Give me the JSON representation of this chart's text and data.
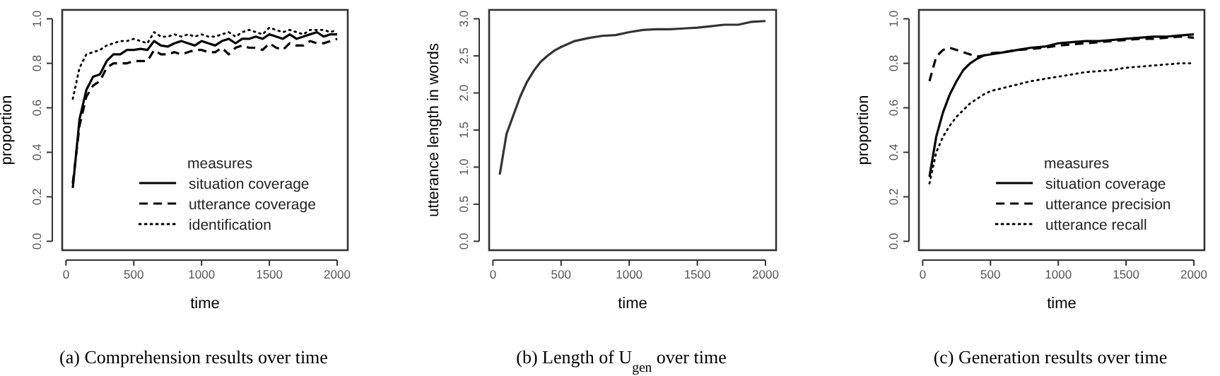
{
  "chart_data": [
    {
      "type": "line",
      "title": "(a) Comprehension results over time",
      "xlabel": "time",
      "ylabel": "proportion",
      "legend_title": "measures",
      "legend": "bottom right",
      "xlim": [
        -28,
        2078
      ],
      "ylim": [
        -0.04,
        1.04
      ],
      "xticks": [
        0,
        500,
        1000,
        1500,
        2000
      ],
      "yticks": [
        {
          "value": 0,
          "label": "0.0"
        },
        {
          "value": 0.2,
          "label": "0.2"
        },
        {
          "value": 0.4,
          "label": "0.4"
        },
        {
          "value": 0.6,
          "label": "0.6"
        },
        {
          "value": 0.8,
          "label": "0.8"
        },
        {
          "value": 1,
          "label": "1.0"
        }
      ],
      "x": [
        50,
        100,
        150,
        200,
        250,
        300,
        350,
        400,
        450,
        500,
        550,
        600,
        650,
        700,
        750,
        800,
        850,
        900,
        950,
        1000,
        1050,
        1100,
        1150,
        1200,
        1250,
        1300,
        1350,
        1400,
        1450,
        1500,
        1550,
        1600,
        1650,
        1700,
        1750,
        1800,
        1850,
        1900,
        1950,
        2000
      ],
      "series": [
        {
          "name": "situation coverage",
          "color": "#000000",
          "line_style": "solid",
          "values": [
            0.24,
            0.55,
            0.68,
            0.74,
            0.75,
            0.81,
            0.84,
            0.84,
            0.86,
            0.86,
            0.865,
            0.86,
            0.9,
            0.88,
            0.875,
            0.89,
            0.9,
            0.89,
            0.88,
            0.9,
            0.89,
            0.88,
            0.9,
            0.91,
            0.89,
            0.91,
            0.91,
            0.92,
            0.91,
            0.93,
            0.92,
            0.91,
            0.93,
            0.91,
            0.92,
            0.93,
            0.94,
            0.92,
            0.93,
            0.93
          ]
        },
        {
          "name": "utterance coverage",
          "color": "#000000",
          "line_style": "dashed",
          "values": [
            0.26,
            0.52,
            0.65,
            0.7,
            0.72,
            0.78,
            0.8,
            0.8,
            0.8,
            0.81,
            0.81,
            0.81,
            0.86,
            0.84,
            0.84,
            0.85,
            0.84,
            0.85,
            0.86,
            0.86,
            0.85,
            0.85,
            0.87,
            0.84,
            0.87,
            0.88,
            0.87,
            0.87,
            0.86,
            0.89,
            0.87,
            0.86,
            0.89,
            0.88,
            0.88,
            0.9,
            0.89,
            0.89,
            0.9,
            0.91
          ]
        },
        {
          "name": "identification",
          "color": "#000000",
          "line_style": "dotted",
          "values": [
            0.64,
            0.78,
            0.84,
            0.85,
            0.86,
            0.88,
            0.89,
            0.9,
            0.9,
            0.91,
            0.9,
            0.89,
            0.94,
            0.92,
            0.92,
            0.93,
            0.92,
            0.93,
            0.92,
            0.93,
            0.92,
            0.92,
            0.93,
            0.94,
            0.92,
            0.94,
            0.95,
            0.94,
            0.93,
            0.96,
            0.95,
            0.94,
            0.95,
            0.94,
            0.93,
            0.95,
            0.95,
            0.95,
            0.94,
            0.95
          ]
        }
      ]
    },
    {
      "type": "line",
      "title": "(b) Length of U$_{gen}$ over time",
      "xlabel": "time",
      "ylabel": "utterance length in words",
      "xlim": [
        -28,
        2078
      ],
      "ylim": [
        -0.12,
        3.12
      ],
      "xticks": [
        0,
        500,
        1000,
        1500,
        2000
      ],
      "yticks": [
        {
          "value": 0,
          "label": "0.0"
        },
        {
          "value": 0.5,
          "label": "0.5"
        },
        {
          "value": 1,
          "label": "1.0"
        },
        {
          "value": 1.5,
          "label": "1.5"
        },
        {
          "value": 2,
          "label": "2.0"
        },
        {
          "value": 2.5,
          "label": "2.5"
        },
        {
          "value": 3,
          "label": "3.0"
        }
      ],
      "x": [
        50,
        100,
        150,
        200,
        250,
        300,
        350,
        400,
        450,
        500,
        600,
        700,
        800,
        900,
        1000,
        1100,
        1200,
        1300,
        1400,
        1500,
        1600,
        1700,
        1800,
        1900,
        2000
      ],
      "series": [
        {
          "color": "#333333",
          "line_style": "solid",
          "values": [
            0.9,
            1.45,
            1.7,
            1.95,
            2.15,
            2.3,
            2.42,
            2.5,
            2.57,
            2.62,
            2.7,
            2.74,
            2.77,
            2.78,
            2.82,
            2.85,
            2.86,
            2.86,
            2.87,
            2.88,
            2.9,
            2.92,
            2.92,
            2.96,
            2.97
          ]
        }
      ]
    },
    {
      "type": "line",
      "title": "(c) Generation results over time",
      "xlabel": "time",
      "ylabel": "proportion",
      "legend_title": "measures",
      "legend": "bottom right",
      "xlim": [
        -28,
        2078
      ],
      "ylim": [
        -0.04,
        1.04
      ],
      "xticks": [
        0,
        500,
        1000,
        1500,
        2000
      ],
      "yticks": [
        {
          "value": 0,
          "label": "0.0"
        },
        {
          "value": 0.2,
          "label": "0.2"
        },
        {
          "value": 0.4,
          "label": "0.4"
        },
        {
          "value": 0.6,
          "label": "0.6"
        },
        {
          "value": 0.8,
          "label": "0.8"
        },
        {
          "value": 1,
          "label": "1.0"
        }
      ],
      "x": [
        50,
        100,
        150,
        200,
        250,
        300,
        350,
        400,
        450,
        500,
        600,
        700,
        800,
        900,
        1000,
        1100,
        1200,
        1300,
        1400,
        1500,
        1600,
        1700,
        1800,
        1900,
        2000
      ],
      "series": [
        {
          "name": "situation coverage",
          "color": "#000000",
          "line_style": "solid",
          "values": [
            0.29,
            0.47,
            0.58,
            0.66,
            0.72,
            0.77,
            0.8,
            0.82,
            0.835,
            0.84,
            0.85,
            0.86,
            0.87,
            0.875,
            0.89,
            0.895,
            0.9,
            0.9,
            0.905,
            0.91,
            0.915,
            0.92,
            0.92,
            0.925,
            0.93
          ]
        },
        {
          "name": "utterance precision",
          "color": "#000000",
          "line_style": "dashed",
          "values": [
            0.72,
            0.83,
            0.86,
            0.87,
            0.86,
            0.85,
            0.84,
            0.83,
            0.835,
            0.845,
            0.85,
            0.86,
            0.865,
            0.87,
            0.88,
            0.885,
            0.89,
            0.895,
            0.9,
            0.905,
            0.91,
            0.91,
            0.915,
            0.92,
            0.915
          ]
        },
        {
          "name": "utterance recall",
          "color": "#000000",
          "line_style": "dotted",
          "values": [
            0.26,
            0.4,
            0.47,
            0.52,
            0.56,
            0.59,
            0.62,
            0.64,
            0.66,
            0.675,
            0.69,
            0.705,
            0.72,
            0.73,
            0.74,
            0.75,
            0.76,
            0.765,
            0.77,
            0.78,
            0.785,
            0.79,
            0.795,
            0.8,
            0.8
          ]
        }
      ]
    }
  ]
}
